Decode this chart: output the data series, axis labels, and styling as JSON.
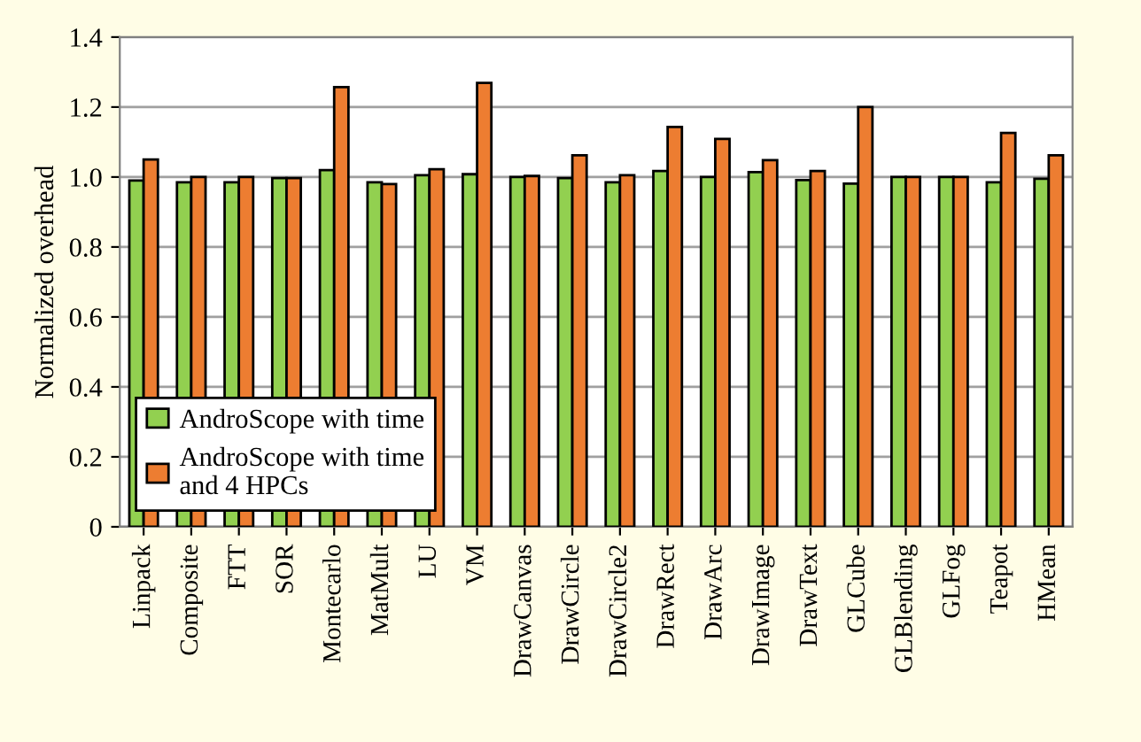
{
  "chart_data": {
    "type": "bar",
    "ylabel": "Normalized overhead",
    "categories": [
      "Linpack",
      "Composite",
      "FTT",
      "SOR",
      "Montecarlo",
      "MatMult",
      "LU",
      "VM",
      "DrawCanvas",
      "DrawCircle",
      "DrawCircle2",
      "DrawRect",
      "DrawArc",
      "DrawImage",
      "DrawText",
      "GLCube",
      "GLBlending",
      "GLFog",
      "Teapot",
      "HMean"
    ],
    "series": [
      {
        "name": "AndroScope with time",
        "color": "#92d050",
        "values": [
          0.99,
          0.985,
          0.985,
          0.997,
          1.02,
          0.985,
          1.005,
          1.008,
          1.0,
          0.997,
          0.985,
          1.017,
          1.0,
          1.014,
          0.991,
          0.981,
          1.0,
          1.0,
          0.985,
          0.995
        ]
      },
      {
        "name": "AndroScope with time\nand 4 HPCs",
        "color": "#ed7d31",
        "values": [
          1.05,
          1.0,
          1.0,
          0.997,
          1.257,
          0.98,
          1.022,
          1.269,
          1.003,
          1.062,
          1.005,
          1.143,
          1.109,
          1.048,
          1.017,
          1.2,
          1.0,
          1.0,
          1.126,
          1.062
        ]
      }
    ],
    "ylim": [
      0,
      1.4
    ],
    "yticks": [
      0,
      0.2,
      0.4,
      0.6,
      0.8,
      {
        "value": 1,
        "label": "1.0"
      },
      1.2,
      1.4
    ],
    "grid": "y",
    "legend": "bottom left"
  }
}
